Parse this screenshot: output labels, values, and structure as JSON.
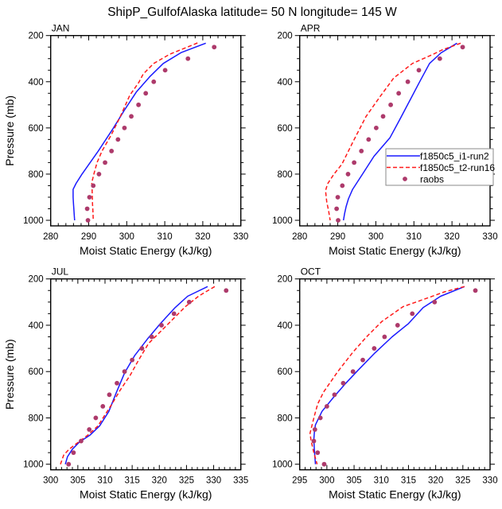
{
  "figure_title": "ShipP_GulfofAlaska  latitude= 50 N longitude= 145 W",
  "colors": {
    "model1": "#1a1aff",
    "model2": "#ff1a1a",
    "obs": "#ad3a6b",
    "axis": "#000000"
  },
  "legend": {
    "panel": 1,
    "entries": [
      {
        "label": "f1850c5_i1-run2",
        "style": "solid",
        "series": "model1"
      },
      {
        "label": "f1850c5_t2-run16",
        "style": "dashed",
        "series": "model2"
      },
      {
        "label": "raobs",
        "style": "marker",
        "series": "obs"
      }
    ]
  },
  "chart_data": [
    {
      "type": "line",
      "title": "JAN",
      "xlabel": "Moist Static Energy (kJ/kg)",
      "ylabel": "Pressure (mb)",
      "xlim": [
        280,
        330
      ],
      "ylim": [
        200,
        1000
      ],
      "y_inverted": true,
      "xticks": [
        280,
        290,
        300,
        310,
        320,
        330
      ],
      "xminor": 2,
      "yticks": [
        200,
        400,
        600,
        800,
        1000
      ],
      "yminor": 50,
      "series": [
        {
          "name": "f1850c5_i1-run2",
          "key": "model1",
          "style": "solid",
          "points": [
            [
              320.8,
              233
            ],
            [
              314.4,
              273
            ],
            [
              309.6,
              321
            ],
            [
              306.0,
              379
            ],
            [
              302.5,
              445
            ],
            [
              299.3,
              525
            ],
            [
              296.4,
              603
            ],
            [
              292.5,
              700
            ],
            [
              288.2,
              801
            ],
            [
              286.7,
              840
            ],
            [
              285.9,
              866
            ],
            [
              285.9,
              900
            ],
            [
              286.0,
              930
            ],
            [
              286.1,
              955
            ],
            [
              286.2,
              976
            ],
            [
              286.3,
              1000
            ]
          ]
        },
        {
          "name": "f1850c5_t2-run16",
          "key": "model2",
          "style": "dashed",
          "points": [
            [
              318.6,
              232
            ],
            [
              311.3,
              281
            ],
            [
              307.1,
              321
            ],
            [
              304.3,
              367
            ],
            [
              303.2,
              402
            ],
            [
              300.8,
              459
            ],
            [
              298.3,
              551
            ],
            [
              295.9,
              631
            ],
            [
              293.5,
              700
            ],
            [
              292.2,
              750
            ],
            [
              291.4,
              797
            ],
            [
              290.8,
              838
            ],
            [
              290.9,
              870
            ],
            [
              291.0,
              930
            ],
            [
              291.1,
              960
            ],
            [
              291.2,
              996
            ]
          ]
        },
        {
          "name": "raobs",
          "key": "obs",
          "style": "marker",
          "points": [
            [
              323.0,
              250
            ],
            [
              316.1,
              300
            ],
            [
              310.1,
              350
            ],
            [
              307.1,
              400
            ],
            [
              305.0,
              450
            ],
            [
              303.1,
              500
            ],
            [
              301.2,
              550
            ],
            [
              299.4,
              600
            ],
            [
              297.7,
              650
            ],
            [
              296.0,
              700
            ],
            [
              294.3,
              750
            ],
            [
              292.7,
              800
            ],
            [
              291.2,
              850
            ],
            [
              290.2,
              900
            ],
            [
              289.6,
              950
            ],
            [
              289.8,
              1000
            ]
          ]
        }
      ]
    },
    {
      "type": "line",
      "title": "APR",
      "xlabel": "Moist Static Energy (kJ/kg)",
      "ylabel": "",
      "xlim": [
        280,
        330
      ],
      "ylim": [
        200,
        1000
      ],
      "y_inverted": true,
      "xticks": [
        280,
        290,
        300,
        310,
        320,
        330
      ],
      "xminor": 2,
      "yticks": [
        200,
        400,
        600,
        800,
        1000
      ],
      "yminor": 50,
      "series": [
        {
          "name": "f1850c5_i1-run2",
          "key": "model1",
          "style": "solid",
          "points": [
            [
              321.3,
              233
            ],
            [
              317.1,
              275
            ],
            [
              314.1,
              321
            ],
            [
              311.5,
              400
            ],
            [
              308.9,
              482
            ],
            [
              306.3,
              563
            ],
            [
              303.7,
              643
            ],
            [
              299.5,
              723
            ],
            [
              296.5,
              800
            ],
            [
              293.9,
              866
            ],
            [
              292.8,
              907
            ],
            [
              292.2,
              940
            ],
            [
              291.8,
              970
            ],
            [
              291.5,
              1000
            ]
          ]
        },
        {
          "name": "f1850c5_t2-run16",
          "key": "model2",
          "style": "dashed",
          "points": [
            [
              322.3,
              233
            ],
            [
              317.3,
              263
            ],
            [
              314.8,
              283
            ],
            [
              309.6,
              321
            ],
            [
              304.7,
              384
            ],
            [
              301.0,
              467
            ],
            [
              297.4,
              551
            ],
            [
              294.0,
              660
            ],
            [
              291.1,
              757
            ],
            [
              289.0,
              800
            ],
            [
              287.3,
              843
            ],
            [
              286.8,
              872
            ],
            [
              287.1,
              920
            ],
            [
              287.6,
              960
            ],
            [
              288.0,
              1000
            ]
          ]
        },
        {
          "name": "raobs",
          "key": "obs",
          "style": "marker",
          "points": [
            [
              322.8,
              250
            ],
            [
              316.8,
              300
            ],
            [
              311.3,
              350
            ],
            [
              308.4,
              400
            ],
            [
              306.0,
              450
            ],
            [
              303.9,
              500
            ],
            [
              301.9,
              550
            ],
            [
              300.1,
              600
            ],
            [
              298.1,
              650
            ],
            [
              296.2,
              700
            ],
            [
              294.3,
              750
            ],
            [
              292.7,
              800
            ],
            [
              291.2,
              850
            ],
            [
              290.0,
              900
            ],
            [
              289.7,
              950
            ],
            [
              290.1,
              1000
            ]
          ]
        }
      ]
    },
    {
      "type": "line",
      "title": "JUL",
      "xlabel": "Moist Static Energy (kJ/kg)",
      "ylabel": "Pressure (mb)",
      "xlim": [
        300,
        335
      ],
      "ylim": [
        200,
        1000
      ],
      "y_inverted": true,
      "xticks": [
        300,
        305,
        310,
        315,
        320,
        325,
        330,
        335
      ],
      "xminor": 1,
      "yticks": [
        200,
        400,
        600,
        800,
        1000
      ],
      "yminor": 50,
      "series": [
        {
          "name": "f1850c5_i1-run2",
          "key": "model1",
          "style": "solid",
          "points": [
            [
              328.9,
              233
            ],
            [
              325.2,
              275
            ],
            [
              322.9,
              324
            ],
            [
              320.2,
              393
            ],
            [
              317.8,
              460
            ],
            [
              315.5,
              530
            ],
            [
              313.6,
              606
            ],
            [
              312.1,
              690
            ],
            [
              310.7,
              772
            ],
            [
              309.0,
              835
            ],
            [
              307.2,
              875
            ],
            [
              305.3,
              904
            ],
            [
              304.0,
              935
            ],
            [
              303.1,
              967
            ],
            [
              302.7,
              1000
            ]
          ]
        },
        {
          "name": "f1850c5_t2-run16",
          "key": "model2",
          "style": "dashed",
          "points": [
            [
              330.2,
              233
            ],
            [
              327.3,
              273
            ],
            [
              324.8,
              320
            ],
            [
              321.4,
              400
            ],
            [
              318.0,
              479
            ],
            [
              316.2,
              550
            ],
            [
              314.6,
              617
            ],
            [
              312.8,
              680
            ],
            [
              311.2,
              743
            ],
            [
              308.7,
              835
            ],
            [
              306.8,
              875
            ],
            [
              304.8,
              910
            ],
            [
              303.4,
              935
            ],
            [
              302.4,
              960
            ],
            [
              301.8,
              1000
            ]
          ]
        },
        {
          "name": "raobs",
          "key": "obs",
          "style": "marker",
          "points": [
            [
              332.3,
              250
            ],
            [
              325.5,
              300
            ],
            [
              322.7,
              350
            ],
            [
              320.4,
              400
            ],
            [
              318.6,
              450
            ],
            [
              316.8,
              500
            ],
            [
              315.0,
              550
            ],
            [
              313.6,
              600
            ],
            [
              312.2,
              650
            ],
            [
              310.8,
              700
            ],
            [
              309.6,
              750
            ],
            [
              308.3,
              800
            ],
            [
              307.1,
              850
            ],
            [
              305.6,
              900
            ],
            [
              304.2,
              950
            ],
            [
              303.3,
              1000
            ]
          ]
        }
      ]
    },
    {
      "type": "line",
      "title": "OCT",
      "xlabel": "Moist Static Energy (kJ/kg)",
      "ylabel": "",
      "xlim": [
        295,
        330
      ],
      "ylim": [
        200,
        1000
      ],
      "y_inverted": true,
      "xticks": [
        295,
        300,
        305,
        310,
        315,
        320,
        325,
        330
      ],
      "xminor": 1,
      "yticks": [
        200,
        400,
        600,
        800,
        1000
      ],
      "yminor": 50,
      "series": [
        {
          "name": "f1850c5_i1-run2",
          "key": "model1",
          "style": "solid",
          "points": [
            [
              325.3,
              233
            ],
            [
              320.9,
              275
            ],
            [
              317.7,
              324
            ],
            [
              315.0,
              393
            ],
            [
              312.0,
              450
            ],
            [
              308.8,
              520
            ],
            [
              305.7,
              595
            ],
            [
              303.3,
              655
            ],
            [
              301.3,
              709
            ],
            [
              299.1,
              772
            ],
            [
              297.9,
              830
            ],
            [
              297.7,
              860
            ],
            [
              297.6,
              893
            ],
            [
              297.7,
              940
            ],
            [
              297.9,
              1000
            ]
          ]
        },
        {
          "name": "f1850c5_t2-run16",
          "key": "model2",
          "style": "dashed",
          "points": [
            [
              325.3,
              233
            ],
            [
              321.6,
              256
            ],
            [
              318.9,
              279
            ],
            [
              314.0,
              320
            ],
            [
              310.1,
              384
            ],
            [
              307.3,
              450
            ],
            [
              304.8,
              516
            ],
            [
              302.0,
              600
            ],
            [
              299.4,
              688
            ],
            [
              298.3,
              740
            ],
            [
              297.7,
              791
            ],
            [
              296.9,
              866
            ],
            [
              297.1,
              900
            ],
            [
              297.6,
              950
            ],
            [
              298.2,
              1000
            ]
          ]
        },
        {
          "name": "raobs",
          "key": "obs",
          "style": "marker",
          "points": [
            [
              327.3,
              250
            ],
            [
              319.8,
              300
            ],
            [
              315.7,
              350
            ],
            [
              313.0,
              400
            ],
            [
              310.6,
              450
            ],
            [
              308.7,
              500
            ],
            [
              306.6,
              550
            ],
            [
              304.8,
              600
            ],
            [
              303.0,
              650
            ],
            [
              301.4,
              700
            ],
            [
              300.0,
              750
            ],
            [
              298.8,
              800
            ],
            [
              297.8,
              850
            ],
            [
              297.6,
              900
            ],
            [
              298.3,
              950
            ],
            [
              299.5,
              1000
            ]
          ]
        }
      ]
    }
  ]
}
